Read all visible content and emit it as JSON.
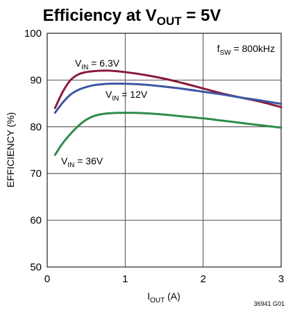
{
  "chart_data": {
    "type": "line",
    "title": {
      "main": "Efficiency at V",
      "sub": "OUT",
      "tail": " = 5V"
    },
    "xlabel": {
      "main": "I",
      "sub": "OUT",
      "tail": " (A)"
    },
    "ylabel": "EFFICIENCY (%)",
    "xlim": [
      0,
      3
    ],
    "ylim": [
      50,
      100
    ],
    "xticks": [
      "0",
      "1",
      "2",
      "3"
    ],
    "yticks": [
      "50",
      "60",
      "70",
      "80",
      "90",
      "100"
    ],
    "grid": true,
    "annotation": {
      "main": "f",
      "sub": "SW",
      "tail": " = 800kHz"
    },
    "figure_code": "36941 G01",
    "series": [
      {
        "label": {
          "main": "V",
          "sub": "IN",
          "tail": " = 6.3V"
        },
        "color": "#8b1a3a",
        "x": [
          0.1,
          0.2,
          0.3,
          0.4,
          0.5,
          0.6,
          0.7,
          0.8,
          1.0,
          1.25,
          1.5,
          1.75,
          2.0,
          2.25,
          2.5,
          2.75,
          3.0
        ],
        "y": [
          84,
          87.5,
          90,
          91.2,
          91.7,
          91.9,
          92.0,
          92.0,
          91.7,
          91.1,
          90.3,
          89.3,
          88.2,
          87.1,
          86.2,
          85.3,
          84.2
        ]
      },
      {
        "label": {
          "main": "V",
          "sub": "IN",
          "tail": " = 12V"
        },
        "color": "#3a56a5",
        "x": [
          0.1,
          0.2,
          0.3,
          0.4,
          0.5,
          0.6,
          0.7,
          0.8,
          1.0,
          1.25,
          1.5,
          1.75,
          2.0,
          2.25,
          2.5,
          2.75,
          3.0
        ],
        "y": [
          83,
          85.2,
          86.9,
          87.9,
          88.5,
          88.9,
          89.1,
          89.2,
          89.2,
          89.0,
          88.6,
          88.1,
          87.5,
          86.9,
          86.2,
          85.6,
          84.9
        ]
      },
      {
        "label": {
          "main": "V",
          "sub": "IN",
          "tail": " = 36V"
        },
        "color": "#2e8b4a",
        "x": [
          0.1,
          0.2,
          0.3,
          0.4,
          0.5,
          0.6,
          0.7,
          0.8,
          1.0,
          1.25,
          1.5,
          1.75,
          2.0,
          2.25,
          2.5,
          2.75,
          3.0
        ],
        "y": [
          74,
          76.5,
          78.5,
          80.2,
          81.5,
          82.3,
          82.7,
          82.9,
          83.0,
          82.9,
          82.6,
          82.2,
          81.8,
          81.3,
          80.8,
          80.3,
          79.8
        ]
      }
    ]
  }
}
